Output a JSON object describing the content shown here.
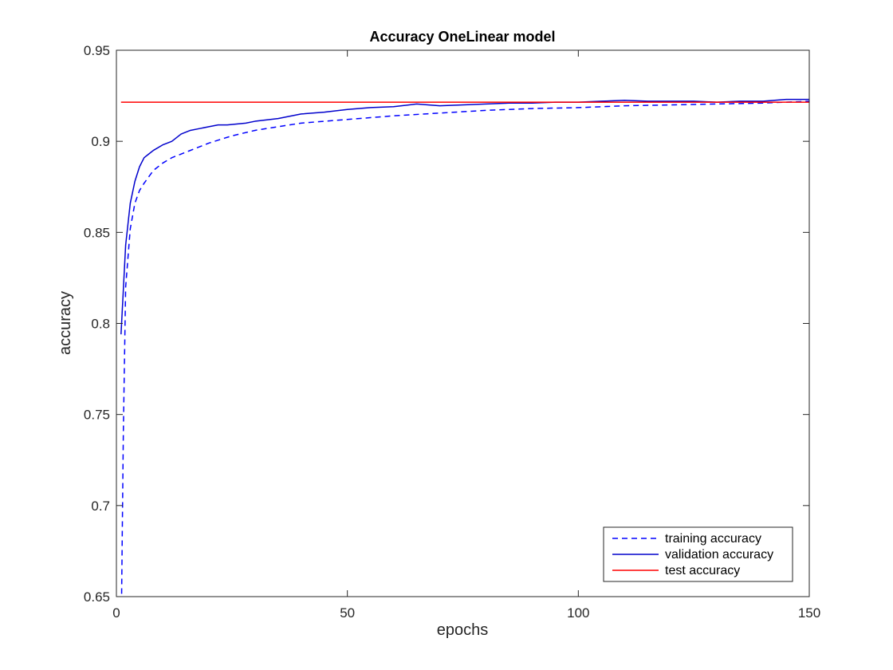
{
  "chart_data": {
    "type": "line",
    "title": "Accuracy OneLinear model",
    "xlabel": "epochs",
    "ylabel": "accuracy",
    "xlim": [
      0,
      150
    ],
    "ylim": [
      0.65,
      0.95
    ],
    "xticks": [
      0,
      50,
      100,
      150
    ],
    "yticks": [
      0.65,
      0.7,
      0.75,
      0.8,
      0.85,
      0.9,
      0.95
    ],
    "ytick_labels": [
      "0.65",
      "0.7",
      "0.75",
      "0.8",
      "0.85",
      "0.9",
      "0.95"
    ],
    "grid": false,
    "legend_position": "bottom-right",
    "series": [
      {
        "name": "training accuracy",
        "color": "#0000ff",
        "style": "dashed",
        "x": [
          1,
          1.5,
          2,
          3,
          4,
          5,
          6,
          8,
          10,
          12,
          15,
          20,
          25,
          30,
          40,
          50,
          60,
          70,
          80,
          90,
          100,
          110,
          120,
          130,
          140,
          150
        ],
        "y": [
          0.62,
          0.74,
          0.82,
          0.852,
          0.866,
          0.873,
          0.877,
          0.884,
          0.888,
          0.891,
          0.894,
          0.899,
          0.903,
          0.906,
          0.91,
          0.912,
          0.914,
          0.9155,
          0.917,
          0.918,
          0.9185,
          0.9195,
          0.92,
          0.9205,
          0.921,
          0.922
        ]
      },
      {
        "name": "validation accuracy",
        "color": "#0000cc",
        "style": "solid",
        "x": [
          1,
          2,
          3,
          4,
          5,
          6,
          7,
          8,
          10,
          12,
          14,
          16,
          18,
          20,
          22,
          24,
          26,
          28,
          30,
          35,
          40,
          45,
          50,
          55,
          60,
          65,
          70,
          75,
          80,
          85,
          90,
          95,
          100,
          105,
          110,
          115,
          120,
          125,
          130,
          135,
          140,
          145,
          150
        ],
        "y": [
          0.794,
          0.843,
          0.866,
          0.878,
          0.886,
          0.891,
          0.893,
          0.895,
          0.898,
          0.9,
          0.904,
          0.906,
          0.907,
          0.908,
          0.909,
          0.909,
          0.9095,
          0.91,
          0.911,
          0.9125,
          0.915,
          0.916,
          0.9175,
          0.9185,
          0.919,
          0.9205,
          0.9195,
          0.92,
          0.9205,
          0.921,
          0.921,
          0.9215,
          0.9215,
          0.922,
          0.9225,
          0.922,
          0.922,
          0.922,
          0.9215,
          0.922,
          0.922,
          0.923,
          0.923
        ]
      },
      {
        "name": "test accuracy",
        "color": "#ff0000",
        "style": "solid",
        "x": [
          1,
          150
        ],
        "y": [
          0.9215,
          0.9215
        ]
      }
    ]
  }
}
